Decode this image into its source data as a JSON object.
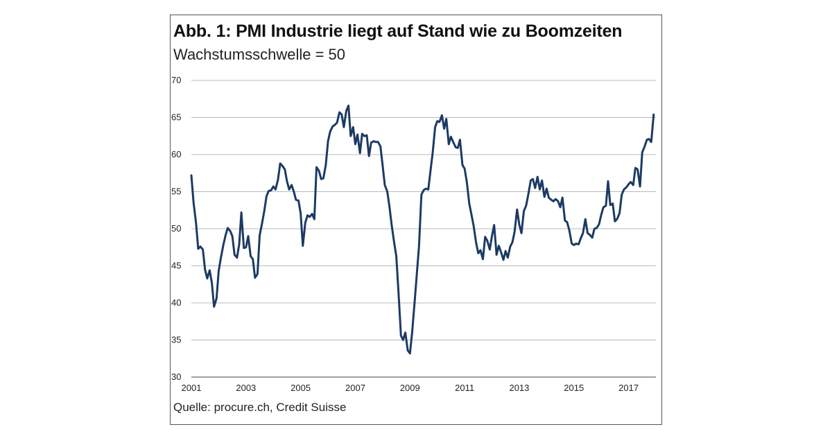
{
  "figure": {
    "title": "Abb. 1: PMI Industrie liegt auf Stand wie zu Boomzeiten",
    "subtitle": "Wachstumsschwelle = 50",
    "source": "Quelle: procure.ch, Credit Suisse"
  },
  "chart_data": {
    "type": "line",
    "title": "Abb. 1: PMI Industrie liegt auf Stand wie zu Boomzeiten",
    "subtitle": "Wachstumsschwelle = 50",
    "xlabel": "",
    "ylabel": "",
    "xlim": [
      2001,
      2018
    ],
    "ylim": [
      30,
      70
    ],
    "yticks": [
      30,
      35,
      40,
      45,
      50,
      55,
      60,
      65,
      70
    ],
    "xticks": [
      "2001",
      "2003",
      "2005",
      "2007",
      "2009",
      "2011",
      "2013",
      "2015",
      "2017"
    ],
    "grid": "horizontal",
    "legend": "none",
    "line_color": "#1c3a63",
    "series": [
      {
        "x": [
          2001.0,
          2001.08,
          2001.17,
          2001.25,
          2001.33,
          2001.42,
          2001.5,
          2001.58,
          2001.67,
          2001.75,
          2001.83,
          2001.92,
          2002.0,
          2002.08,
          2002.17,
          2002.25,
          2002.33,
          2002.42,
          2002.5,
          2002.58,
          2002.67,
          2002.75,
          2002.83,
          2002.92,
          2003.0,
          2003.08,
          2003.17,
          2003.25,
          2003.33,
          2003.42,
          2003.5,
          2003.58,
          2003.67,
          2003.75,
          2003.83,
          2003.92,
          2004.0,
          2004.08,
          2004.17,
          2004.25,
          2004.33,
          2004.42,
          2004.5,
          2004.58,
          2004.67,
          2004.75,
          2004.83,
          2004.92,
          2005.0,
          2005.08,
          2005.17,
          2005.25,
          2005.33,
          2005.42,
          2005.5,
          2005.58,
          2005.67,
          2005.75,
          2005.83,
          2005.92,
          2006.0,
          2006.08,
          2006.17,
          2006.25,
          2006.33,
          2006.42,
          2006.5,
          2006.58,
          2006.67,
          2006.75,
          2006.83,
          2006.92,
          2007.0,
          2007.08,
          2007.17,
          2007.25,
          2007.33,
          2007.42,
          2007.5,
          2007.58,
          2007.67,
          2007.75,
          2007.83,
          2007.92,
          2008.0,
          2008.08,
          2008.17,
          2008.25,
          2008.33,
          2008.42,
          2008.5,
          2008.58,
          2008.67,
          2008.75,
          2008.83,
          2008.92,
          2009.0,
          2009.08,
          2009.17,
          2009.25,
          2009.33,
          2009.42,
          2009.5,
          2009.58,
          2009.67,
          2009.75,
          2009.83,
          2009.92,
          2010.0,
          2010.08,
          2010.17,
          2010.25,
          2010.33,
          2010.42,
          2010.5,
          2010.58,
          2010.67,
          2010.75,
          2010.83,
          2010.92,
          2011.0,
          2011.08,
          2011.17,
          2011.25,
          2011.33,
          2011.42,
          2011.5,
          2011.58,
          2011.67,
          2011.75,
          2011.83,
          2011.92,
          2012.0,
          2012.08,
          2012.17,
          2012.25,
          2012.33,
          2012.42,
          2012.5,
          2012.58,
          2012.67,
          2012.75,
          2012.83,
          2012.92,
          2013.0,
          2013.08,
          2013.17,
          2013.25,
          2013.33,
          2013.42,
          2013.5,
          2013.58,
          2013.67,
          2013.75,
          2013.83,
          2013.92,
          2014.0,
          2014.08,
          2014.17,
          2014.25,
          2014.33,
          2014.42,
          2014.5,
          2014.58,
          2014.67,
          2014.75,
          2014.83,
          2014.92,
          2015.0,
          2015.08,
          2015.17,
          2015.25,
          2015.33,
          2015.42,
          2015.5,
          2015.58,
          2015.67,
          2015.75,
          2015.83,
          2015.92,
          2016.0,
          2016.08,
          2016.17,
          2016.25,
          2016.33,
          2016.42,
          2016.5,
          2016.58,
          2016.67,
          2016.75,
          2016.83,
          2016.92,
          2017.0,
          2017.08,
          2017.17,
          2017.25,
          2017.33,
          2017.42,
          2017.5,
          2017.58,
          2017.67,
          2017.75,
          2017.83,
          2017.92
        ],
        "values": [
          57.2,
          53.5,
          50.8,
          47.3,
          47.6,
          47.2,
          44.5,
          43.3,
          44.4,
          42.7,
          39.5,
          40.6,
          44.3,
          46.1,
          47.8,
          49.1,
          50.1,
          49.7,
          49.0,
          46.5,
          46.1,
          47.9,
          52.2,
          47.4,
          47.5,
          49.0,
          46.3,
          45.9,
          43.4,
          43.9,
          49.1,
          50.6,
          52.4,
          54.4,
          55.1,
          55.2,
          55.7,
          55.3,
          56.6,
          58.8,
          58.5,
          58.0,
          56.4,
          55.3,
          55.9,
          55.0,
          53.9,
          53.8,
          52.1,
          47.7,
          50.8,
          51.8,
          51.6,
          52.0,
          51.3,
          58.3,
          57.8,
          56.7,
          56.8,
          58.6,
          61.8,
          63.1,
          63.8,
          64.0,
          64.3,
          65.7,
          65.4,
          63.7,
          65.9,
          66.6,
          62.5,
          63.7,
          61.4,
          62.7,
          60.2,
          62.8,
          62.5,
          62.6,
          59.8,
          61.6,
          61.8,
          61.7,
          61.7,
          61.1,
          58.5,
          55.9,
          55.0,
          53.0,
          50.5,
          48.2,
          46.3,
          41.5,
          35.6,
          35.0,
          36.0,
          33.6,
          33.2,
          36.0,
          40.1,
          43.8,
          47.6,
          54.6,
          55.2,
          55.4,
          55.3,
          57.8,
          60.2,
          63.7,
          64.5,
          64.4,
          65.3,
          63.5,
          64.8,
          61.4,
          62.4,
          61.7,
          61.0,
          60.9,
          62.0,
          58.6,
          58.1,
          56.3,
          53.4,
          51.9,
          50.4,
          48.1,
          46.7,
          47.1,
          45.9,
          48.9,
          48.4,
          47.2,
          49.0,
          50.5,
          46.5,
          47.7,
          46.9,
          45.8,
          47.0,
          46.1,
          47.6,
          48.2,
          49.6,
          52.6,
          50.6,
          49.4,
          52.4,
          53.1,
          54.6,
          56.5,
          56.7,
          55.5,
          57.0,
          55.3,
          56.5,
          54.3,
          55.4,
          54.2,
          53.9,
          53.7,
          54.0,
          53.7,
          52.9,
          54.2,
          51.1,
          50.9,
          49.8,
          48.0,
          47.8,
          48.0,
          47.9,
          48.7,
          49.4,
          51.3,
          49.4,
          49.2,
          48.8,
          50.0,
          50.1,
          50.6,
          51.9,
          52.9,
          53.1,
          56.4,
          53.2,
          53.4,
          51.0,
          51.3,
          52.1,
          54.6,
          55.3,
          55.6,
          56.0,
          56.3,
          55.9,
          58.2,
          58.0,
          55.7,
          60.3,
          61.0,
          62.0,
          62.1,
          61.7,
          65.4
        ]
      }
    ]
  }
}
